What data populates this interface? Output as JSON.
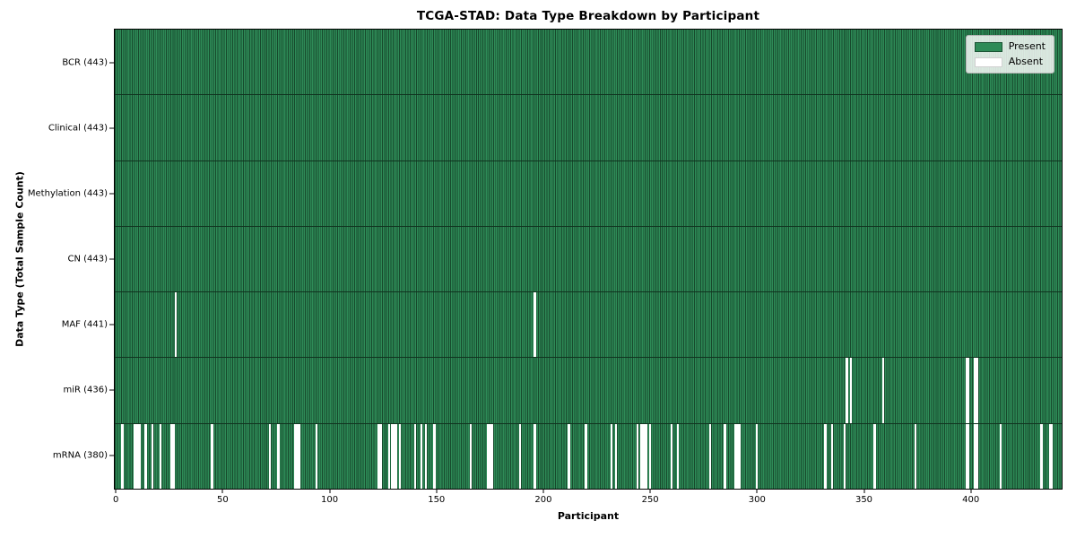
{
  "title": "TCGA-STAD: Data Type Breakdown by Participant",
  "xlabel": "Participant",
  "ylabel": "Data Type (Total Sample Count)",
  "legend": {
    "present_label": "Present",
    "absent_label": "Absent"
  },
  "colors": {
    "present": "#2e8b57",
    "present_stripe": "#17492c",
    "absent": "#ffffff",
    "row_separator": "#10331f",
    "legend_border": "#b5b5b5",
    "spine": "#000000"
  },
  "x_ticks": [
    0,
    50,
    100,
    150,
    200,
    250,
    300,
    350,
    400
  ],
  "chart_data": {
    "type": "heatmap",
    "title": "TCGA-STAD: Data Type Breakdown by Participant",
    "xlabel": "Participant",
    "ylabel": "Data Type (Total Sample Count)",
    "legend": [
      "Present",
      "Absent"
    ],
    "legend_position": "upper right",
    "n_participants": 443,
    "x_axis_ticks": [
      0,
      50,
      100,
      150,
      200,
      250,
      300,
      350,
      400
    ],
    "cell_values": "present=1, absent=0",
    "rows": [
      {
        "label": "BCR (443)",
        "data_type": "BCR",
        "total": 443,
        "absent_count": 0,
        "absent_participants": []
      },
      {
        "label": "Clinical (443)",
        "data_type": "Clinical",
        "total": 443,
        "absent_count": 0,
        "absent_participants": []
      },
      {
        "label": "Methylation (443)",
        "data_type": "Methylation",
        "total": 443,
        "absent_count": 0,
        "absent_participants": []
      },
      {
        "label": "CN (443)",
        "data_type": "CN",
        "total": 443,
        "absent_count": 0,
        "absent_participants": []
      },
      {
        "label": "MAF (441)",
        "data_type": "MAF",
        "total": 441,
        "absent_count": 2,
        "absent_participants": [
          28,
          196
        ]
      },
      {
        "label": "miR (436)",
        "data_type": "miR",
        "total": 436,
        "absent_count": 7,
        "absent_participants": [
          342,
          344,
          359,
          398,
          399,
          402,
          403
        ]
      },
      {
        "label": "mRNA (380)",
        "data_type": "mRNA",
        "total": 380,
        "absent_count": 63,
        "absent_participants": [
          3,
          9,
          10,
          11,
          14,
          17,
          21,
          26,
          27,
          45,
          72,
          76,
          84,
          85,
          86,
          94,
          123,
          124,
          128,
          129,
          130,
          131,
          133,
          140,
          143,
          145,
          149,
          166,
          174,
          175,
          176,
          189,
          196,
          212,
          220,
          232,
          234,
          244,
          246,
          247,
          248,
          250,
          260,
          263,
          278,
          285,
          290,
          291,
          292,
          300,
          332,
          335,
          341,
          355,
          374,
          398,
          399,
          402,
          403,
          414,
          433,
          437,
          438
        ]
      }
    ]
  }
}
